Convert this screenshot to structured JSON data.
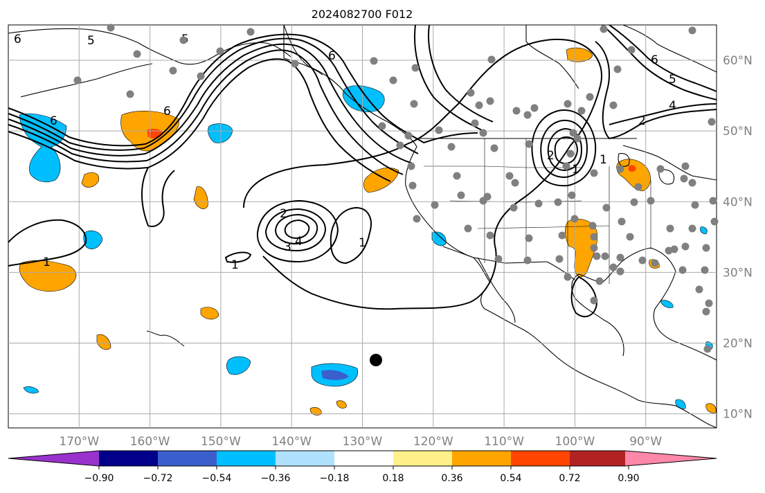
{
  "title": "2024082700 F012",
  "map": {
    "lon_range": [
      -180,
      -80
    ],
    "lat_range": [
      8,
      65
    ],
    "lon_labels": [
      "170°W",
      "160°W",
      "150°W",
      "140°W",
      "130°W",
      "120°W",
      "110°W",
      "100°W",
      "90°W"
    ],
    "lat_labels": [
      "10°N",
      "20°N",
      "30°N",
      "40°N",
      "50°N",
      "60°N"
    ],
    "contour_labels": [
      "6",
      "6",
      "6",
      "5",
      "5",
      "6",
      "6",
      "5",
      "4",
      "2",
      "2",
      "1",
      "1",
      "1",
      "2",
      "3",
      "4",
      "1",
      "1"
    ],
    "colors": {
      "background": "#ffffff",
      "gridline": "#a9a9a9",
      "coastline": "#000000",
      "station_dot": "#808080",
      "storm_marker": "#000000",
      "warm_anomaly": "#ffa500",
      "cool_anomaly": "#00bfff"
    }
  },
  "colorbar": {
    "tick_labels": [
      "−0.90",
      "−0.72",
      "−0.54",
      "−0.36",
      "−0.18",
      "0.18",
      "0.36",
      "0.54",
      "0.72",
      "0.90"
    ],
    "colors": [
      "#9932cc",
      "#00008b",
      "#3a5fcd",
      "#00bfff",
      "#b0e2ff",
      "#ffffff",
      "#fff08a",
      "#ffa500",
      "#ff4500",
      "#b22222",
      "#ff88aa"
    ]
  }
}
